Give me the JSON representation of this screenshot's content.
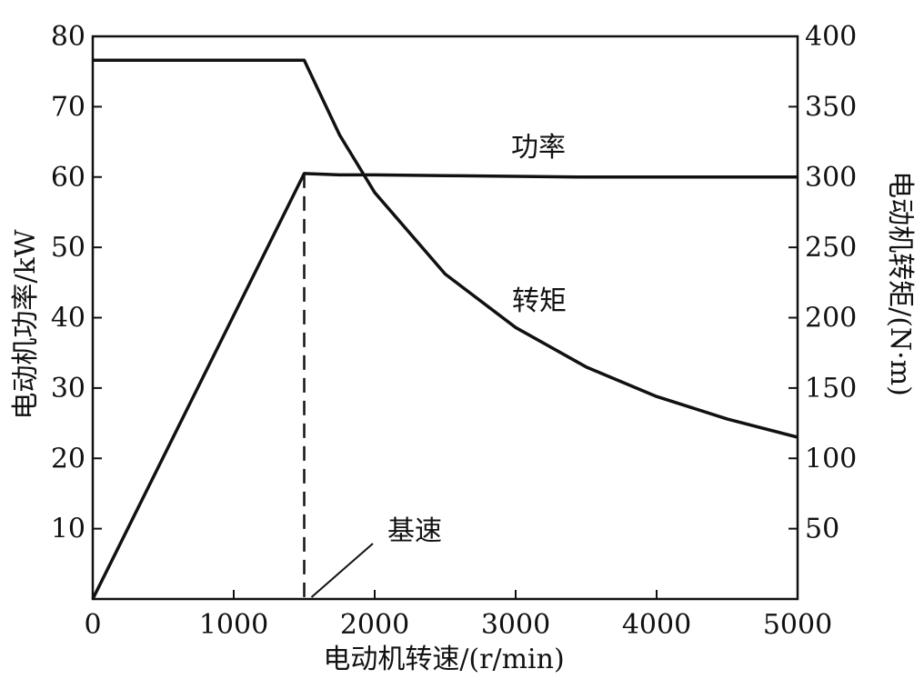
{
  "chart_data": {
    "type": "line",
    "x": [
      0,
      1500,
      1750,
      2000,
      2500,
      3000,
      3500,
      4000,
      4500,
      5000
    ],
    "xlabel": "电动机转速/(r/min)",
    "ylabel_left": "电动机功率/kW",
    "ylabel_right": "电动机转矩/(N·m)",
    "xlim": [
      0,
      5000
    ],
    "ylim_left": [
      0,
      80
    ],
    "ylim_right": [
      0,
      400
    ],
    "x_ticks": [
      0,
      1000,
      2000,
      3000,
      4000,
      5000
    ],
    "y_left_ticks": [
      10,
      20,
      30,
      40,
      50,
      60,
      70,
      80
    ],
    "y_right_ticks": [
      50,
      100,
      150,
      200,
      250,
      300,
      350,
      400
    ],
    "grid": false,
    "series": [
      {
        "name": "功率",
        "axis": "left",
        "values": [
          0,
          60.5,
          60.3,
          60.3,
          60.2,
          60.1,
          60.0,
          60.0,
          60.0,
          60.0
        ]
      },
      {
        "name": "转矩",
        "axis": "right",
        "values": [
          383,
          383,
          330,
          289,
          231,
          193,
          165,
          144,
          128,
          115
        ]
      }
    ],
    "annotations": [
      {
        "text": "基速",
        "x": 1500
      }
    ]
  },
  "colors": {
    "ink": "#111111",
    "background": "#ffffff"
  }
}
